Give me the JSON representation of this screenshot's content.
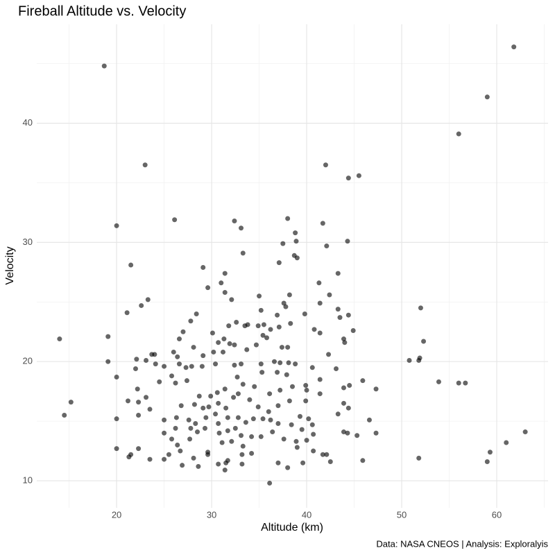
{
  "chart_data": {
    "type": "scatter",
    "title": "Fireball Altitude vs. Velocity",
    "x_label": "Altitude (km)",
    "y_label": "Velocity",
    "caption": "Data: NASA CNEOS | Analysis: Exploralyis",
    "color": "rgba(0,0,0,0.6)",
    "grid": true,
    "xlim": [
      11.6,
      65.4
    ],
    "ylim": [
      7.73,
      48.3
    ],
    "xticks": [
      20,
      30,
      40,
      50,
      60
    ],
    "yticks": [
      10,
      20,
      30,
      40
    ],
    "x": [
      14.0,
      14.5,
      15.2,
      18.7,
      19.1,
      19.1,
      20.0,
      20.0,
      20.0,
      20.0,
      23.0,
      21.5,
      21.1,
      22.6,
      23.3,
      26.1,
      29.1,
      29.6,
      32.4,
      33.1,
      33.3,
      38.0,
      38.8,
      38.9,
      37.5,
      37.1,
      38.7,
      39.0,
      42.0,
      44.4,
      45.5,
      41.7,
      42.1,
      44.3,
      43.3,
      41.3,
      42.4,
      41.4,
      43.3,
      39.8,
      43.5,
      44.4,
      44.9,
      40.8,
      41.4,
      43.9,
      44.0,
      42.3,
      40.6,
      43.1,
      41.4,
      43.9,
      44.5,
      45.9,
      47.3,
      41.4,
      43.9,
      44.4,
      43.3,
      46.6,
      47.3,
      43.9,
      44.3,
      45.3,
      40.7,
      41.7,
      42.1,
      42.5,
      45.9,
      39.6,
      37.0,
      38.0,
      36.1,
      51.8,
      50.8,
      51.9,
      52.3,
      52.0,
      53.9,
      56.0,
      56.7,
      51.8,
      56.0,
      59.0,
      61.8,
      63.0,
      61.0,
      59.3,
      59.0,
      21.2,
      22.2,
      22.0,
      22.1,
      23.1,
      24.1,
      25.0,
      23.7,
      24.0,
      25.8,
      24.5,
      23.1,
      22.3,
      23.5,
      22.3,
      25.0,
      25.0,
      21.5,
      21.3,
      23.5,
      25.0,
      25.5,
      22.3,
      26.7,
      26.4,
      27.7,
      25.8,
      26.2,
      26.3,
      26.8,
      26.2,
      26.6,
      27.3,
      27.4,
      27.9,
      28.1,
      26.0,
      26.4,
      26.6,
      27.0,
      27.8,
      28.4,
      29.1,
      30.2,
      29.0,
      30.4,
      31.2,
      31.9,
      32.4,
      31.3,
      30.7,
      30.1,
      31.8,
      32.1,
      31.4,
      31.0,
      31.4,
      33.5,
      32.6,
      33.8,
      35.0,
      35.2,
      35.5,
      35.4,
      36.2,
      34.9,
      35.8,
      34.7,
      33.7,
      36.9,
      37.1,
      37.6,
      38.2,
      37.8,
      38.3,
      37.4,
      38.0,
      35.2,
      36.6,
      37.2,
      38.1,
      38.8,
      36.9,
      37.9,
      35.3,
      33.1,
      32.4,
      32.7,
      33.3,
      34.5,
      36.1,
      37.2,
      38.5,
      39.9,
      40.0,
      39.9,
      38.2,
      37.0,
      36.0,
      34.9,
      34.0,
      32.8,
      32.3,
      31.4,
      30.6,
      29.9,
      28.7,
      28.2,
      29.1,
      29.7,
      30.7,
      31.5,
      30.4,
      29.4,
      28.3,
      27.6,
      27.8,
      28.5,
      29.3,
      30.7,
      31.7,
      32.8,
      33.6,
      34.4,
      35.4,
      36.2,
      37.0,
      38.4,
      39.3,
      40.2,
      40.6,
      39.5,
      40.7,
      40.0,
      38.9,
      39.0,
      37.6,
      36.4,
      35.2,
      34.2,
      33.1,
      32.5,
      31.7,
      30.8,
      31.1,
      32.1,
      33.3,
      34.2,
      33.2,
      31.7,
      31.5,
      33.2,
      31.4,
      30.7,
      29.6,
      29.6,
      28.6,
      28.1,
      26.9
    ],
    "values": [
      21.9,
      15.5,
      16.6,
      44.8,
      22.1,
      20.0,
      18.7,
      15.2,
      12.7,
      31.4,
      36.5,
      28.1,
      24.1,
      24.7,
      25.2,
      31.9,
      27.9,
      26.2,
      31.8,
      31.2,
      29.1,
      32.0,
      30.8,
      30.1,
      29.9,
      28.3,
      28.9,
      28.7,
      36.5,
      35.4,
      35.6,
      31.6,
      29.7,
      30.1,
      27.4,
      26.6,
      25.6,
      24.9,
      24.4,
      24.0,
      23.7,
      23.9,
      22.6,
      22.7,
      22.4,
      21.9,
      21.6,
      20.6,
      19.5,
      19.4,
      18.5,
      17.8,
      18.0,
      18.4,
      17.7,
      17.3,
      16.5,
      16.1,
      15.6,
      15.1,
      14.0,
      14.1,
      14.0,
      13.8,
      12.5,
      12.2,
      12.2,
      11.6,
      11.7,
      11.5,
      11.5,
      11.1,
      9.8,
      20.1,
      20.1,
      20.3,
      21.7,
      24.5,
      18.3,
      18.2,
      18.2,
      11.9,
      39.1,
      42.2,
      46.4,
      14.1,
      13.2,
      12.4,
      11.6,
      16.7,
      17.7,
      19.4,
      20.2,
      20.1,
      19.8,
      19.6,
      20.6,
      20.6,
      18.8,
      18.3,
      17.0,
      16.6,
      16.0,
      15.5,
      15.1,
      14.0,
      12.2,
      12.0,
      11.8,
      11.8,
      12.2,
      12.7,
      12.5,
      13.0,
      13.5,
      13.5,
      14.4,
      15.3,
      16.3,
      18.2,
      19.8,
      19.5,
      18.4,
      19.6,
      21.2,
      20.8,
      20.4,
      21.9,
      22.5,
      23.4,
      24.0,
      20.5,
      20.8,
      19.6,
      19.8,
      20.8,
      21.5,
      21.4,
      21.9,
      21.6,
      22.4,
      23.0,
      25.2,
      25.8,
      26.6,
      27.4,
      23.0,
      23.3,
      23.1,
      25.5,
      24.3,
      23.1,
      22.2,
      22.7,
      23.0,
      22.0,
      21.4,
      21.0,
      23.9,
      22.9,
      24.9,
      25.6,
      24.6,
      23.2,
      21.2,
      21.2,
      19.8,
      20.0,
      19.9,
      19.9,
      19.8,
      19.1,
      18.9,
      19.1,
      19.8,
      19.7,
      18.7,
      18.1,
      17.9,
      17.3,
      17.6,
      17.9,
      18.0,
      17.6,
      16.7,
      16.7,
      16.3,
      15.8,
      16.2,
      16.8,
      17.3,
      17.0,
      17.7,
      17.4,
      17.1,
      17.1,
      16.4,
      16.1,
      16.2,
      16.5,
      16.1,
      15.6,
      15.3,
      14.8,
      15.1,
      14.4,
      14.1,
      14.4,
      14.8,
      15.3,
      15.3,
      14.9,
      15.2,
      15.2,
      15.1,
      14.8,
      14.7,
      15.4,
      15.2,
      14.7,
      14.3,
      13.9,
      13.4,
      13.3,
      12.8,
      13.5,
      14.1,
      13.7,
      13.7,
      13.8,
      14.4,
      14.2,
      14.0,
      13.2,
      13.3,
      12.9,
      12.3,
      12.2,
      11.7,
      11.5,
      11.4,
      10.9,
      11.4,
      12.2,
      12.4,
      11.2,
      11.9,
      11.3
    ]
  }
}
